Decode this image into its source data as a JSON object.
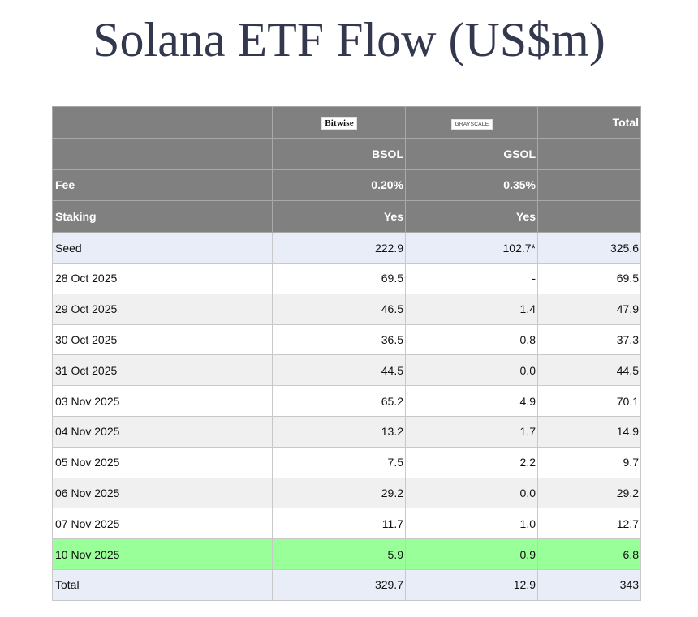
{
  "title": "Solana ETF Flow (US$m)",
  "header": {
    "logos": {
      "bitwise": "Bitwise",
      "grayscale": "GRAYSCALE"
    },
    "total_label": "Total",
    "tickers": {
      "bsol": "BSOL",
      "gsol": "GSOL"
    },
    "fee": {
      "label": "Fee",
      "bsol": "0.20%",
      "gsol": "0.35%"
    },
    "staking": {
      "label": "Staking",
      "bsol": "Yes",
      "gsol": "Yes"
    }
  },
  "rows": [
    {
      "label": "Seed",
      "bsol": "222.9",
      "gsol": "102.7*",
      "total": "325.6"
    },
    {
      "label": "28 Oct 2025",
      "bsol": "69.5",
      "gsol": "-",
      "total": "69.5"
    },
    {
      "label": "29 Oct 2025",
      "bsol": "46.5",
      "gsol": "1.4",
      "total": "47.9"
    },
    {
      "label": "30 Oct 2025",
      "bsol": "36.5",
      "gsol": "0.8",
      "total": "37.3"
    },
    {
      "label": "31 Oct 2025",
      "bsol": "44.5",
      "gsol": "0.0",
      "total": "44.5"
    },
    {
      "label": "03 Nov 2025",
      "bsol": "65.2",
      "gsol": "4.9",
      "total": "70.1"
    },
    {
      "label": "04 Nov 2025",
      "bsol": "13.2",
      "gsol": "1.7",
      "total": "14.9"
    },
    {
      "label": "05 Nov 2025",
      "bsol": "7.5",
      "gsol": "2.2",
      "total": "9.7"
    },
    {
      "label": "06 Nov 2025",
      "bsol": "29.2",
      "gsol": "0.0",
      "total": "29.2"
    },
    {
      "label": "07 Nov 2025",
      "bsol": "11.7",
      "gsol": "1.0",
      "total": "12.7"
    },
    {
      "label": "10 Nov 2025",
      "bsol": "5.9",
      "gsol": "0.9",
      "total": "6.8"
    },
    {
      "label": "Total",
      "bsol": "329.7",
      "gsol": "12.9",
      "total": "343"
    }
  ],
  "colors": {
    "header_bg": "#808080",
    "seed_total_bg": "#e8edf7",
    "alt_row_bg": "#f0f0f0",
    "highlight_row_bg": "#99ff99",
    "title_color": "#33384f"
  }
}
